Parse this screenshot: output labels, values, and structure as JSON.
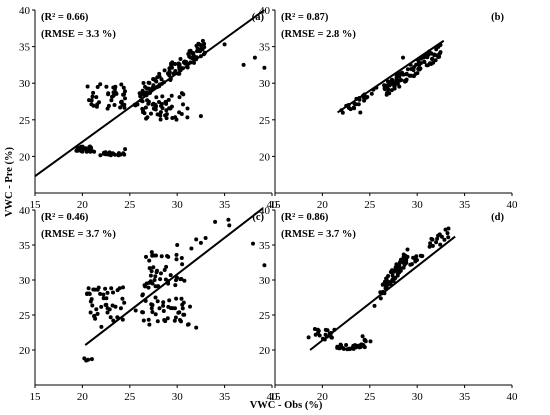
{
  "figure": {
    "ylabel": "VWC - Pre (%)",
    "xlabel": "VWC - Obs (%)"
  },
  "chart_data": [
    {
      "type": "scatter",
      "panel_label": "(a)",
      "r2_text": "(R² = 0.66)",
      "rmse_text": "(RMSE = 3.3 %)",
      "xlim": [
        15,
        40
      ],
      "ylim": [
        15,
        40
      ],
      "xticks": [
        15,
        20,
        25,
        30,
        35,
        40
      ],
      "yticks": [
        20,
        25,
        30,
        35,
        40
      ],
      "fit_line": [
        [
          15,
          17.3
        ],
        [
          39.2,
          40
        ]
      ],
      "clusters": [
        {
          "cx": [
            19.3,
            21.3
          ],
          "cy": [
            20.6,
            21.4
          ],
          "n": 25,
          "seed": 11
        },
        {
          "cx": [
            21.8,
            24.5
          ],
          "cy": [
            20.1,
            20.6
          ],
          "n": 18,
          "seed": 12
        },
        {
          "cx": [
            20.5,
            24.5
          ],
          "cy": [
            26.5,
            30.0
          ],
          "n": 40,
          "seed": 13
        },
        {
          "cx": [
            25.5,
            31.5
          ],
          "cy": [
            25.0,
            29.0
          ],
          "n": 55,
          "seed": 14
        },
        {
          "cx": [
            26.0,
            33.0
          ],
          "cy": [
            28.5,
            35.0
          ],
          "n": 110,
          "seed": 15,
          "trend": true
        }
      ],
      "points": [
        [
          24.5,
          21.0
        ],
        [
          35.0,
          35.3
        ],
        [
          37.0,
          32.5
        ],
        [
          38.2,
          33.5
        ],
        [
          39.2,
          32.1
        ],
        [
          32.5,
          25.5
        ],
        [
          27.5,
          27.2
        ]
      ]
    },
    {
      "type": "scatter",
      "panel_label": "(b)",
      "r2_text": "(R² = 0.87)",
      "rmse_text": "(RMSE = 2.8 %)",
      "xlim": [
        15,
        40
      ],
      "ylim": [
        15,
        40
      ],
      "xticks": [
        15,
        20,
        25,
        30,
        35,
        40
      ],
      "yticks": [
        20,
        25,
        30,
        35,
        40
      ],
      "fit_line": [
        [
          21.6,
          26.0
        ],
        [
          32.8,
          35.8
        ]
      ],
      "clusters": [
        {
          "cx": [
            22.0,
            26.0
          ],
          "cy": [
            26.0,
            29.5
          ],
          "n": 22,
          "seed": 21,
          "trend": true
        },
        {
          "cx": [
            26.5,
            32.5
          ],
          "cy": [
            29.0,
            34.5
          ],
          "n": 95,
          "seed": 22,
          "trend": true
        }
      ],
      "points": [
        [
          24.0,
          26.0
        ],
        [
          22.0,
          26.3
        ],
        [
          28.5,
          33.5
        ]
      ]
    },
    {
      "type": "scatter",
      "panel_label": "(c)",
      "r2_text": "(R² = 0.46)",
      "rmse_text": "(RMSE = 3.7 %)",
      "xlim": [
        15,
        40
      ],
      "ylim": [
        15,
        40
      ],
      "xticks": [
        15,
        20,
        25,
        30,
        35,
        40
      ],
      "yticks": [
        20,
        25,
        30,
        35,
        40
      ],
      "fit_line": [
        [
          20.3,
          20.7
        ],
        [
          39.0,
          40.2
        ]
      ],
      "clusters": [
        {
          "cx": [
            20.3,
            24.5
          ],
          "cy": [
            24.0,
            29.0
          ],
          "n": 45,
          "seed": 31
        },
        {
          "cx": [
            25.5,
            31.5
          ],
          "cy": [
            23.5,
            28.0
          ],
          "n": 45,
          "seed": 32
        },
        {
          "cx": [
            26.5,
            31.0
          ],
          "cy": [
            28.5,
            34.0
          ],
          "n": 45,
          "seed": 33
        }
      ],
      "points": [
        [
          20.2,
          18.8
        ],
        [
          20.6,
          18.6
        ],
        [
          21.0,
          18.7
        ],
        [
          20.4,
          18.5
        ],
        [
          32.0,
          35.8
        ],
        [
          32.5,
          35.3
        ],
        [
          33.0,
          36.0
        ],
        [
          34.0,
          38.3
        ],
        [
          35.4,
          38.6
        ],
        [
          35.5,
          37.8
        ],
        [
          38.0,
          35.2
        ],
        [
          39.2,
          32.1
        ],
        [
          31.5,
          34.5
        ],
        [
          30.0,
          35.0
        ],
        [
          22.0,
          23.3
        ],
        [
          32.0,
          23.2
        ]
      ]
    },
    {
      "type": "scatter",
      "panel_label": "(d)",
      "r2_text": "(R² = 0.86)",
      "rmse_text": "(RMSE = 3.7 %)",
      "xlim": [
        15,
        40
      ],
      "ylim": [
        15,
        40
      ],
      "xticks": [
        15,
        20,
        25,
        30,
        35,
        40
      ],
      "yticks": [
        20,
        25,
        30,
        35,
        40
      ],
      "fit_line": [
        [
          18.7,
          20.0
        ],
        [
          34.0,
          36.2
        ]
      ],
      "clusters": [
        {
          "cx": [
            18.5,
            21.3
          ],
          "cy": [
            21.5,
            23.0
          ],
          "n": 20,
          "seed": 41
        },
        {
          "cx": [
            21.5,
            24.5
          ],
          "cy": [
            20.1,
            20.8
          ],
          "n": 28,
          "seed": 42
        },
        {
          "cx": [
            24.2,
            25.2
          ],
          "cy": [
            21.2,
            22.2
          ],
          "n": 6,
          "seed": 43
        },
        {
          "cx": [
            26.0,
            29.0
          ],
          "cy": [
            28.0,
            33.5
          ],
          "n": 70,
          "seed": 44,
          "trend": true
        },
        {
          "cx": [
            28.5,
            33.5
          ],
          "cy": [
            32.0,
            37.0
          ],
          "n": 25,
          "seed": 45,
          "trend": true
        }
      ],
      "points": [
        [
          25.5,
          26.3
        ],
        [
          33.2,
          36.7
        ]
      ]
    }
  ]
}
